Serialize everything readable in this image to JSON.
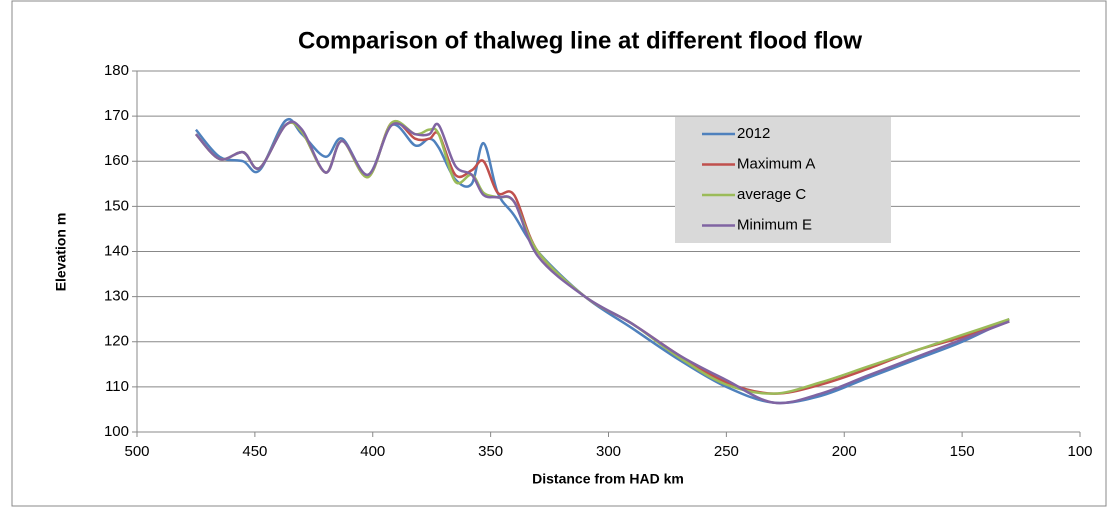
{
  "chart_data": {
    "type": "line",
    "title": "Comparison of thalweg line at different flood flow",
    "x_label": "Distance from HAD  km",
    "y_label": "Elevation m",
    "x": [
      475,
      465,
      455,
      448,
      437,
      430,
      420,
      413,
      402,
      392,
      382,
      376,
      372,
      365,
      358,
      353,
      347,
      340,
      330,
      310,
      290,
      270,
      250,
      230,
      210,
      190,
      170,
      150,
      130
    ],
    "series": [
      {
        "name": "2012",
        "color": "#4f81bd",
        "values": [
          167,
          161,
          160,
          158,
          169,
          166,
          161,
          165,
          157,
          168,
          163.5,
          165,
          163,
          156,
          155,
          164,
          153,
          148,
          140,
          130,
          123,
          116,
          110,
          106.5,
          108,
          112,
          116,
          120,
          125
        ]
      },
      {
        "name": "Maximum A",
        "color": "#c0504d",
        "values": [
          166,
          160.5,
          162,
          158.5,
          168,
          166.5,
          157.5,
          164.5,
          156.5,
          168.5,
          165,
          165,
          166,
          157,
          158,
          160,
          153,
          152.5,
          140,
          130,
          124,
          117,
          111,
          108.5,
          110.5,
          114,
          118,
          121,
          124.5
        ]
      },
      {
        "name": "average C",
        "color": "#9bbb59",
        "values": [
          166,
          160.5,
          162,
          158.5,
          168,
          166.5,
          157.5,
          164.5,
          156.5,
          168.5,
          166,
          167,
          166,
          155.5,
          157,
          153,
          152,
          151,
          140,
          130,
          124,
          116.5,
          110.5,
          108.5,
          111,
          114.5,
          118,
          121.5,
          125
        ]
      },
      {
        "name": "Minimum E",
        "color": "#8064a2",
        "values": [
          166,
          160.5,
          162,
          158.5,
          168,
          167,
          157.5,
          164.5,
          157,
          168,
          166,
          166,
          168,
          159,
          157,
          152.5,
          152,
          151,
          139,
          130,
          124,
          117,
          111.5,
          106.5,
          108.5,
          112.5,
          116.5,
          120.5,
          124.5
        ]
      }
    ],
    "xlim": [
      500,
      100
    ],
    "xticks": [
      500,
      450,
      400,
      350,
      300,
      250,
      200,
      150,
      100
    ],
    "ylim": [
      100,
      180
    ],
    "yticks": [
      100,
      110,
      120,
      130,
      140,
      150,
      160,
      170,
      180
    ],
    "grid": true
  }
}
